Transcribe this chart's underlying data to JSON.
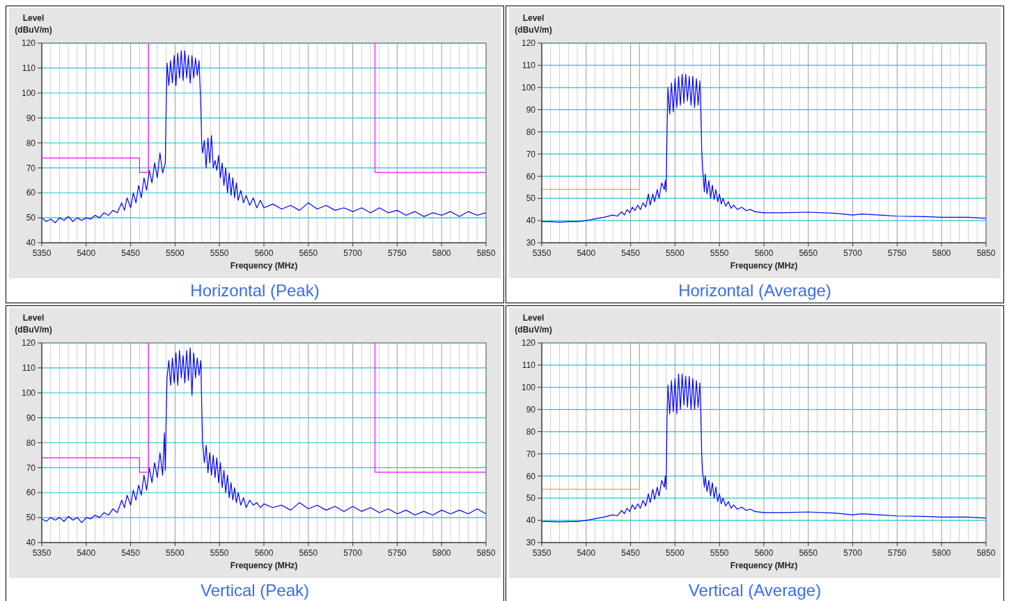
{
  "chart_data": [
    {
      "type": "line",
      "title": "Horizontal (Peak)",
      "xlabel": "Frequency (MHz)",
      "ylabel": "Level (dBuV/m)",
      "xlim": [
        5350,
        5850
      ],
      "ylim": [
        40,
        120
      ],
      "yticks": [
        40,
        50,
        60,
        70,
        80,
        90,
        100,
        110,
        120
      ],
      "grid": true,
      "xticks": [
        5350,
        {
          "value": 5360,
          "label": null
        },
        {
          "value": 5370,
          "label": null
        },
        {
          "value": 5380,
          "label": null
        },
        {
          "value": 5390,
          "label": null
        },
        5400,
        {
          "value": 5410,
          "label": null
        },
        {
          "value": 5420,
          "label": null
        },
        {
          "value": 5430,
          "label": null
        },
        {
          "value": 5440,
          "label": null
        },
        5450,
        {
          "value": 5460,
          "label": null
        },
        {
          "value": 5470,
          "label": null
        },
        {
          "value": 5480,
          "label": null
        },
        {
          "value": 5490,
          "label": null
        },
        5500,
        {
          "value": 5510,
          "label": null
        },
        {
          "value": 5520,
          "label": null
        },
        {
          "value": 5530,
          "label": null
        },
        {
          "value": 5540,
          "label": null
        },
        5550,
        {
          "value": 5560,
          "label": null
        },
        {
          "value": 5570,
          "label": null
        },
        {
          "value": 5580,
          "label": null
        },
        {
          "value": 5590,
          "label": null
        },
        5600,
        {
          "value": 5610,
          "label": null
        },
        {
          "value": 5620,
          "label": null
        },
        {
          "value": 5630,
          "label": null
        },
        {
          "value": 5640,
          "label": null
        },
        5650,
        {
          "value": 5660,
          "label": null
        },
        {
          "value": 5670,
          "label": null
        },
        {
          "value": 5680,
          "label": null
        },
        {
          "value": 5690,
          "label": null
        },
        5700,
        {
          "value": 5710,
          "label": null
        },
        {
          "value": 5720,
          "label": null
        },
        {
          "value": 5730,
          "label": null
        },
        {
          "value": 5740,
          "label": null
        },
        5750,
        {
          "value": 5760,
          "label": null
        },
        {
          "value": 5770,
          "label": null
        },
        {
          "value": 5780,
          "label": null
        },
        {
          "value": 5790,
          "label": null
        },
        5800,
        {
          "value": 5810,
          "label": null
        },
        {
          "value": 5820,
          "label": null
        },
        {
          "value": 5830,
          "label": null
        },
        {
          "value": 5840,
          "label": null
        },
        5850
      ],
      "series": [
        {
          "color": "#0000ff",
          "x": [
            5350,
            5355,
            5360,
            5365,
            5370,
            5375,
            5380,
            5385,
            5390,
            5395,
            5400,
            5405,
            5410,
            5415,
            5420,
            5425,
            5430,
            5435,
            5440,
            5443,
            5446,
            5450,
            5453,
            5456,
            5459,
            5462,
            5465,
            5468,
            5471,
            5474,
            5477,
            5480,
            5483,
            5486,
            5489,
            5490,
            5491,
            5493,
            5495,
            5497,
            5499,
            5501,
            5503,
            5505,
            5507,
            5509,
            5511,
            5513,
            5515,
            5517,
            5519,
            5521,
            5523,
            5525,
            5527,
            5529,
            5530,
            5531,
            5533,
            5535,
            5537,
            5539,
            5541,
            5543,
            5545,
            5547,
            5549,
            5551,
            5553,
            5555,
            5557,
            5559,
            5561,
            5563,
            5565,
            5567,
            5569,
            5571,
            5574,
            5577,
            5580,
            5584,
            5588,
            5592,
            5596,
            5600,
            5610,
            5620,
            5630,
            5640,
            5650,
            5660,
            5670,
            5680,
            5690,
            5700,
            5710,
            5720,
            5730,
            5740,
            5750,
            5760,
            5770,
            5780,
            5790,
            5800,
            5810,
            5820,
            5830,
            5840,
            5850
          ],
          "values": [
            50,
            48.5,
            49.5,
            48,
            50,
            49,
            50.5,
            48.5,
            50,
            49,
            50,
            49.5,
            51,
            50,
            52,
            51,
            53,
            52,
            56,
            53,
            58,
            54,
            60,
            56,
            63,
            58,
            66,
            61,
            69,
            64,
            72,
            66,
            76,
            68,
            72,
            95,
            112,
            103,
            113,
            104,
            115,
            103,
            116,
            106,
            117,
            105,
            117,
            106,
            115,
            104,
            115,
            106,
            114,
            107,
            113,
            95,
            80,
            76,
            81,
            70,
            82,
            72,
            83,
            70,
            73,
            69,
            75,
            66,
            72,
            63,
            70,
            60,
            68,
            59,
            66,
            58,
            64,
            57,
            61,
            56,
            59,
            55,
            58,
            54,
            57,
            54,
            55.5,
            53.5,
            55,
            53,
            56,
            53.5,
            55,
            53,
            54,
            52.5,
            54,
            52,
            54,
            52,
            53,
            51,
            52.5,
            50.5,
            52,
            51,
            52.5,
            50.5,
            52.5,
            51,
            52
          ]
        },
        {
          "color": "#ff00ff",
          "x": [
            5350,
            5460,
            5460,
            5470,
            5470
          ],
          "values": [
            74,
            74,
            68.2,
            68.2,
            120
          ]
        },
        {
          "color": "#ff00ff",
          "x": [
            5725,
            5725,
            5850
          ],
          "values": [
            120,
            68.2,
            68.2
          ]
        }
      ]
    },
    {
      "type": "line",
      "title": "Horizontal (Average)",
      "xlabel": "Frequency (MHz)",
      "ylabel": "Level (dBuV/m)",
      "xlim": [
        5350,
        5850
      ],
      "ylim": [
        30,
        120
      ],
      "yticks": [
        30,
        40,
        50,
        60,
        70,
        80,
        90,
        100,
        110,
        120
      ],
      "grid": true,
      "xticks": [
        5350,
        {
          "value": 5360,
          "label": null
        },
        {
          "value": 5370,
          "label": null
        },
        {
          "value": 5380,
          "label": null
        },
        {
          "value": 5390,
          "label": null
        },
        5400,
        {
          "value": 5410,
          "label": null
        },
        {
          "value": 5420,
          "label": null
        },
        {
          "value": 5430,
          "label": null
        },
        {
          "value": 5440,
          "label": null
        },
        5450,
        {
          "value": 5460,
          "label": null
        },
        {
          "value": 5470,
          "label": null
        },
        {
          "value": 5480,
          "label": null
        },
        {
          "value": 5490,
          "label": null
        },
        5500,
        {
          "value": 5510,
          "label": null
        },
        {
          "value": 5520,
          "label": null
        },
        {
          "value": 5530,
          "label": null
        },
        {
          "value": 5540,
          "label": null
        },
        5550,
        {
          "value": 5560,
          "label": null
        },
        {
          "value": 5570,
          "label": null
        },
        {
          "value": 5580,
          "label": null
        },
        {
          "value": 5590,
          "label": null
        },
        5600,
        {
          "value": 5610,
          "label": null
        },
        {
          "value": 5620,
          "label": null
        },
        {
          "value": 5630,
          "label": null
        },
        {
          "value": 5640,
          "label": null
        },
        5650,
        {
          "value": 5660,
          "label": null
        },
        {
          "value": 5670,
          "label": null
        },
        {
          "value": 5680,
          "label": null
        },
        {
          "value": 5690,
          "label": null
        },
        5700,
        {
          "value": 5710,
          "label": null
        },
        {
          "value": 5720,
          "label": null
        },
        {
          "value": 5730,
          "label": null
        },
        {
          "value": 5740,
          "label": null
        },
        5750,
        {
          "value": 5760,
          "label": null
        },
        {
          "value": 5770,
          "label": null
        },
        {
          "value": 5780,
          "label": null
        },
        {
          "value": 5790,
          "label": null
        },
        5800,
        {
          "value": 5810,
          "label": null
        },
        {
          "value": 5820,
          "label": null
        },
        {
          "value": 5830,
          "label": null
        },
        {
          "value": 5840,
          "label": null
        },
        5850
      ],
      "series": [
        {
          "color": "#0000ff",
          "x": [
            5350,
            5360,
            5370,
            5380,
            5390,
            5400,
            5410,
            5420,
            5430,
            5435,
            5440,
            5443,
            5446,
            5449,
            5452,
            5455,
            5458,
            5461,
            5464,
            5467,
            5470,
            5472,
            5475,
            5477,
            5480,
            5482,
            5485,
            5488,
            5489,
            5490,
            5491,
            5492,
            5494,
            5496,
            5498,
            5500,
            5502,
            5504,
            5506,
            5508,
            5510,
            5512,
            5514,
            5516,
            5518,
            5520,
            5522,
            5524,
            5526,
            5528,
            5529,
            5530,
            5531,
            5533,
            5534,
            5536,
            5538,
            5540,
            5542,
            5544,
            5546,
            5548,
            5550,
            5552,
            5554,
            5557,
            5560,
            5563,
            5566,
            5570,
            5575,
            5580,
            5585,
            5590,
            5600,
            5620,
            5650,
            5680,
            5700,
            5710,
            5730,
            5750,
            5780,
            5800,
            5830,
            5850
          ],
          "values": [
            39.5,
            39.5,
            39.3,
            39.5,
            39.5,
            40,
            40.8,
            41.5,
            42.5,
            42,
            44,
            42.5,
            45,
            43.5,
            46,
            44.5,
            47,
            45,
            48,
            46,
            52,
            47,
            52,
            48.5,
            54,
            50,
            57,
            54,
            58,
            53,
            80,
            100,
            88,
            102,
            89,
            104,
            91,
            105,
            92,
            106,
            93,
            106,
            94,
            105,
            92,
            105,
            91,
            104,
            92,
            103,
            90,
            72,
            64,
            53,
            61,
            52,
            58,
            50,
            56,
            49.5,
            54,
            48.5,
            52,
            47.5,
            50,
            46.5,
            48.5,
            45.5,
            47,
            45,
            46,
            44.5,
            45,
            44,
            43.5,
            43.5,
            43.8,
            43.3,
            42.5,
            43,
            42.5,
            42,
            41.8,
            41.5,
            41.5,
            41
          ]
        },
        {
          "color": "#ffa030",
          "x": [
            5350,
            5460,
            5460
          ],
          "values": [
            54,
            54,
            120
          ]
        }
      ]
    },
    {
      "type": "line",
      "title": "Vertical (Peak)",
      "xlabel": "Frequency (MHz)",
      "ylabel": "Level (dBuV/m)",
      "xlim": [
        5350,
        5850
      ],
      "ylim": [
        40,
        120
      ],
      "yticks": [
        40,
        50,
        60,
        70,
        80,
        90,
        100,
        110,
        120
      ],
      "grid": true,
      "xticks": [
        5350,
        {
          "value": 5360,
          "label": null
        },
        {
          "value": 5370,
          "label": null
        },
        {
          "value": 5380,
          "label": null
        },
        {
          "value": 5390,
          "label": null
        },
        5400,
        {
          "value": 5410,
          "label": null
        },
        {
          "value": 5420,
          "label": null
        },
        {
          "value": 5430,
          "label": null
        },
        {
          "value": 5440,
          "label": null
        },
        5450,
        {
          "value": 5460,
          "label": null
        },
        {
          "value": 5470,
          "label": null
        },
        {
          "value": 5480,
          "label": null
        },
        {
          "value": 5490,
          "label": null
        },
        5500,
        {
          "value": 5510,
          "label": null
        },
        {
          "value": 5520,
          "label": null
        },
        {
          "value": 5530,
          "label": null
        },
        {
          "value": 5540,
          "label": null
        },
        5550,
        {
          "value": 5560,
          "label": null
        },
        {
          "value": 5570,
          "label": null
        },
        {
          "value": 5580,
          "label": null
        },
        {
          "value": 5590,
          "label": null
        },
        5600,
        {
          "value": 5610,
          "label": null
        },
        {
          "value": 5620,
          "label": null
        },
        {
          "value": 5630,
          "label": null
        },
        {
          "value": 5640,
          "label": null
        },
        5650,
        {
          "value": 5660,
          "label": null
        },
        {
          "value": 5670,
          "label": null
        },
        {
          "value": 5680,
          "label": null
        },
        {
          "value": 5690,
          "label": null
        },
        5700,
        {
          "value": 5710,
          "label": null
        },
        {
          "value": 5720,
          "label": null
        },
        {
          "value": 5730,
          "label": null
        },
        {
          "value": 5740,
          "label": null
        },
        5750,
        {
          "value": 5760,
          "label": null
        },
        {
          "value": 5770,
          "label": null
        },
        {
          "value": 5780,
          "label": null
        },
        {
          "value": 5790,
          "label": null
        },
        5800,
        {
          "value": 5810,
          "label": null
        },
        {
          "value": 5820,
          "label": null
        },
        {
          "value": 5830,
          "label": null
        },
        {
          "value": 5840,
          "label": null
        },
        5850
      ],
      "series": [
        {
          "color": "#0000ff",
          "x": [
            5350,
            5355,
            5360,
            5365,
            5370,
            5375,
            5380,
            5385,
            5390,
            5395,
            5400,
            5405,
            5410,
            5415,
            5420,
            5425,
            5430,
            5435,
            5440,
            5443,
            5446,
            5450,
            5453,
            5456,
            5459,
            5462,
            5465,
            5468,
            5471,
            5474,
            5477,
            5480,
            5483,
            5486,
            5488,
            5489,
            5490,
            5491,
            5493,
            5495,
            5497,
            5499,
            5501,
            5503,
            5505,
            5507,
            5509,
            5511,
            5513,
            5515,
            5517,
            5519,
            5521,
            5523,
            5525,
            5527,
            5529,
            5530,
            5531,
            5533,
            5535,
            5537,
            5539,
            5541,
            5543,
            5545,
            5547,
            5549,
            5551,
            5553,
            5555,
            5557,
            5559,
            5561,
            5563,
            5565,
            5567,
            5569,
            5571,
            5574,
            5577,
            5580,
            5584,
            5588,
            5592,
            5596,
            5600,
            5610,
            5620,
            5630,
            5640,
            5650,
            5660,
            5670,
            5680,
            5690,
            5700,
            5710,
            5720,
            5730,
            5740,
            5750,
            5760,
            5770,
            5780,
            5790,
            5800,
            5810,
            5820,
            5830,
            5840,
            5850
          ],
          "values": [
            49.5,
            48.5,
            50,
            49,
            50,
            48.5,
            50.5,
            49,
            50,
            48,
            50,
            49.5,
            51,
            50,
            52,
            51,
            53.5,
            52,
            57,
            54,
            59,
            55,
            61,
            57,
            63,
            59,
            67,
            61,
            70,
            64,
            72,
            66,
            76,
            67,
            84,
            69,
            90,
            106,
            113,
            103,
            114,
            104,
            116,
            103,
            117,
            106,
            115,
            104,
            117,
            105,
            118,
            99,
            116,
            106,
            114,
            107,
            113,
            95,
            80,
            72,
            79,
            68,
            76,
            67,
            75,
            66,
            74,
            64,
            72,
            62,
            69,
            60,
            67,
            58,
            64,
            57,
            62,
            56,
            60,
            55,
            58,
            54,
            57,
            55,
            56,
            54,
            55.5,
            54,
            55,
            53,
            56,
            53.5,
            55,
            53,
            54.5,
            52.5,
            54.5,
            52.5,
            54,
            52,
            53.5,
            51.5,
            53,
            51,
            52.5,
            51,
            53,
            51.5,
            53,
            51.5,
            53.5,
            51.5
          ]
        },
        {
          "color": "#ff00ff",
          "x": [
            5350,
            5460,
            5460,
            5470,
            5470
          ],
          "values": [
            74,
            74,
            68.2,
            68.2,
            120
          ]
        },
        {
          "color": "#ff00ff",
          "x": [
            5725,
            5725,
            5850
          ],
          "values": [
            120,
            68.2,
            68.2
          ]
        }
      ]
    },
    {
      "type": "line",
      "title": "Vertical (Average)",
      "xlabel": "Frequency (MHz)",
      "ylabel": "Level (dBuV/m)",
      "xlim": [
        5350,
        5850
      ],
      "ylim": [
        30,
        120
      ],
      "yticks": [
        30,
        40,
        50,
        60,
        70,
        80,
        90,
        100,
        110,
        120
      ],
      "grid": true,
      "xticks": [
        5350,
        {
          "value": 5360,
          "label": null
        },
        {
          "value": 5370,
          "label": null
        },
        {
          "value": 5380,
          "label": null
        },
        {
          "value": 5390,
          "label": null
        },
        5400,
        {
          "value": 5410,
          "label": null
        },
        {
          "value": 5420,
          "label": null
        },
        {
          "value": 5430,
          "label": null
        },
        {
          "value": 5440,
          "label": null
        },
        5450,
        {
          "value": 5460,
          "label": null
        },
        {
          "value": 5470,
          "label": null
        },
        {
          "value": 5480,
          "label": null
        },
        {
          "value": 5490,
          "label": null
        },
        5500,
        {
          "value": 5510,
          "label": null
        },
        {
          "value": 5520,
          "label": null
        },
        {
          "value": 5530,
          "label": null
        },
        {
          "value": 5540,
          "label": null
        },
        5550,
        {
          "value": 5560,
          "label": null
        },
        {
          "value": 5570,
          "label": null
        },
        {
          "value": 5580,
          "label": null
        },
        {
          "value": 5590,
          "label": null
        },
        5600,
        {
          "value": 5610,
          "label": null
        },
        {
          "value": 5620,
          "label": null
        },
        {
          "value": 5630,
          "label": null
        },
        {
          "value": 5640,
          "label": null
        },
        5650,
        {
          "value": 5660,
          "label": null
        },
        {
          "value": 5670,
          "label": null
        },
        {
          "value": 5680,
          "label": null
        },
        {
          "value": 5690,
          "label": null
        },
        5700,
        {
          "value": 5710,
          "label": null
        },
        {
          "value": 5720,
          "label": null
        },
        {
          "value": 5730,
          "label": null
        },
        {
          "value": 5740,
          "label": null
        },
        5750,
        {
          "value": 5760,
          "label": null
        },
        {
          "value": 5770,
          "label": null
        },
        {
          "value": 5780,
          "label": null
        },
        {
          "value": 5790,
          "label": null
        },
        5800,
        {
          "value": 5810,
          "label": null
        },
        {
          "value": 5820,
          "label": null
        },
        {
          "value": 5830,
          "label": null
        },
        {
          "value": 5840,
          "label": null
        },
        5850
      ],
      "series": [
        {
          "color": "#0000ff",
          "x": [
            5350,
            5360,
            5370,
            5380,
            5390,
            5400,
            5410,
            5420,
            5430,
            5435,
            5440,
            5443,
            5446,
            5449,
            5452,
            5455,
            5458,
            5461,
            5464,
            5467,
            5470,
            5472,
            5475,
            5477,
            5480,
            5482,
            5485,
            5488,
            5489,
            5490,
            5491,
            5492,
            5494,
            5496,
            5498,
            5500,
            5502,
            5504,
            5506,
            5508,
            5510,
            5512,
            5514,
            5516,
            5518,
            5520,
            5522,
            5524,
            5526,
            5528,
            5529,
            5530,
            5531,
            5533,
            5534,
            5536,
            5538,
            5540,
            5542,
            5544,
            5546,
            5548,
            5550,
            5552,
            5554,
            5557,
            5560,
            5563,
            5566,
            5570,
            5575,
            5580,
            5585,
            5590,
            5600,
            5620,
            5650,
            5680,
            5700,
            5710,
            5730,
            5750,
            5780,
            5800,
            5830,
            5850
          ],
          "values": [
            39.5,
            39.5,
            39.3,
            39.5,
            39.5,
            40,
            40.8,
            41.5,
            42.5,
            42,
            44.5,
            43,
            45.5,
            44,
            47,
            45,
            47.5,
            45.5,
            49,
            46.5,
            52,
            48,
            54,
            49.5,
            55,
            51,
            58,
            55,
            60,
            54,
            86,
            101,
            88,
            103,
            89,
            104,
            88,
            106,
            90,
            106,
            92,
            105,
            91,
            105,
            90,
            104,
            90,
            103,
            91,
            102,
            88,
            70,
            62,
            55,
            60,
            53,
            58,
            51,
            57,
            50,
            55,
            48.5,
            52,
            47.5,
            50,
            46.5,
            48.5,
            45.5,
            47,
            45,
            46,
            44.5,
            45,
            44,
            43.5,
            43.5,
            43.8,
            43.3,
            42.5,
            43,
            42.5,
            42,
            41.8,
            41.5,
            41.5,
            41
          ]
        },
        {
          "color": "#ffa030",
          "x": [
            5350,
            5460,
            5460
          ],
          "values": [
            54,
            54,
            120
          ]
        }
      ]
    }
  ]
}
